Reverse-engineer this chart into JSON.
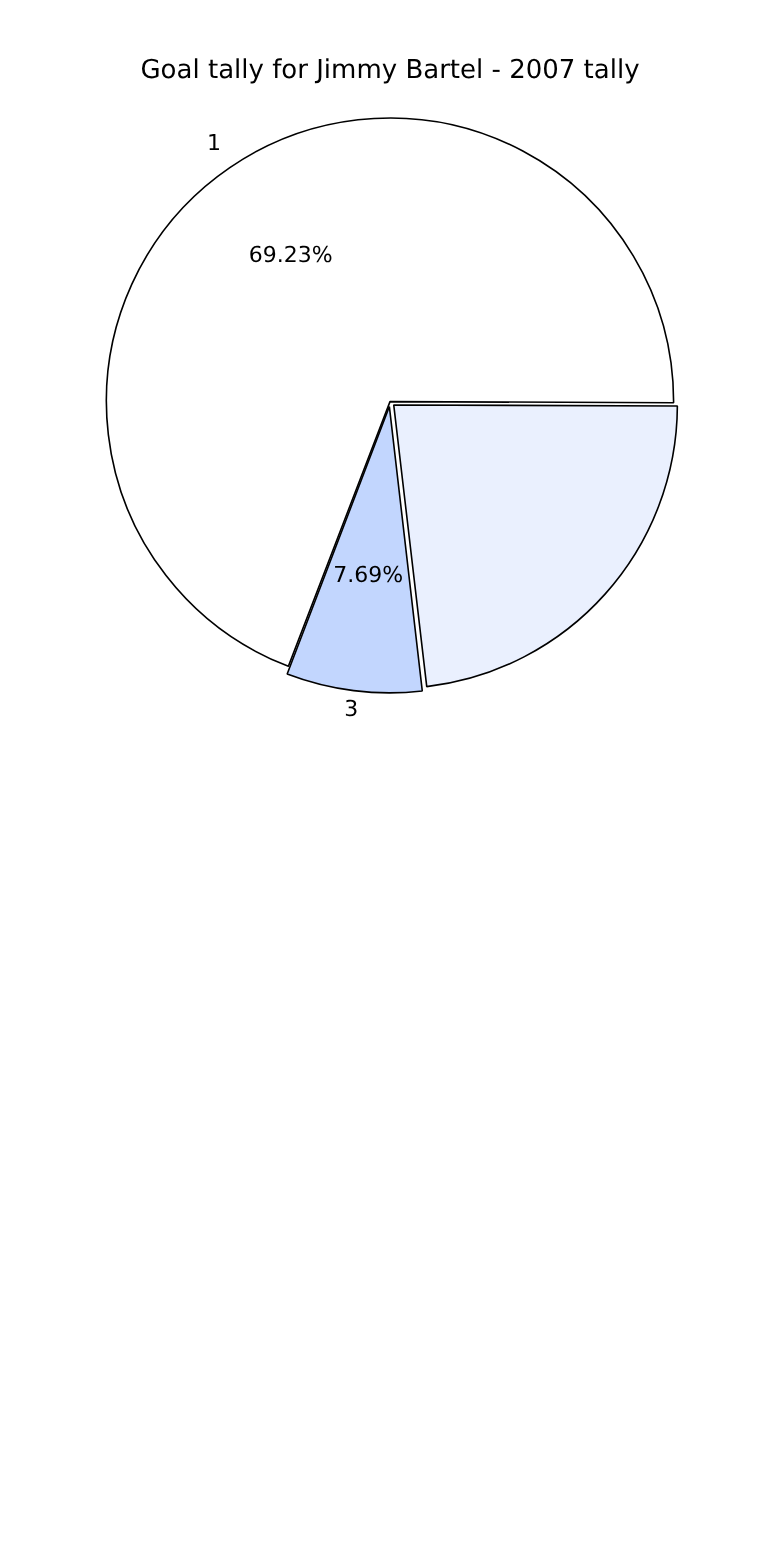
{
  "chart_data": {
    "type": "pie",
    "title": "Goal tally for Jimmy Bartel - 2007 tally",
    "categories": [
      "1",
      null,
      "3"
    ],
    "values": [
      69.23,
      23.08,
      7.69
    ],
    "value_labels": [
      "69.23%",
      null,
      "7.69%"
    ],
    "colors": [
      "#ffffff",
      "#eaf0fe",
      "#c2d6fe"
    ],
    "legend": false
  }
}
